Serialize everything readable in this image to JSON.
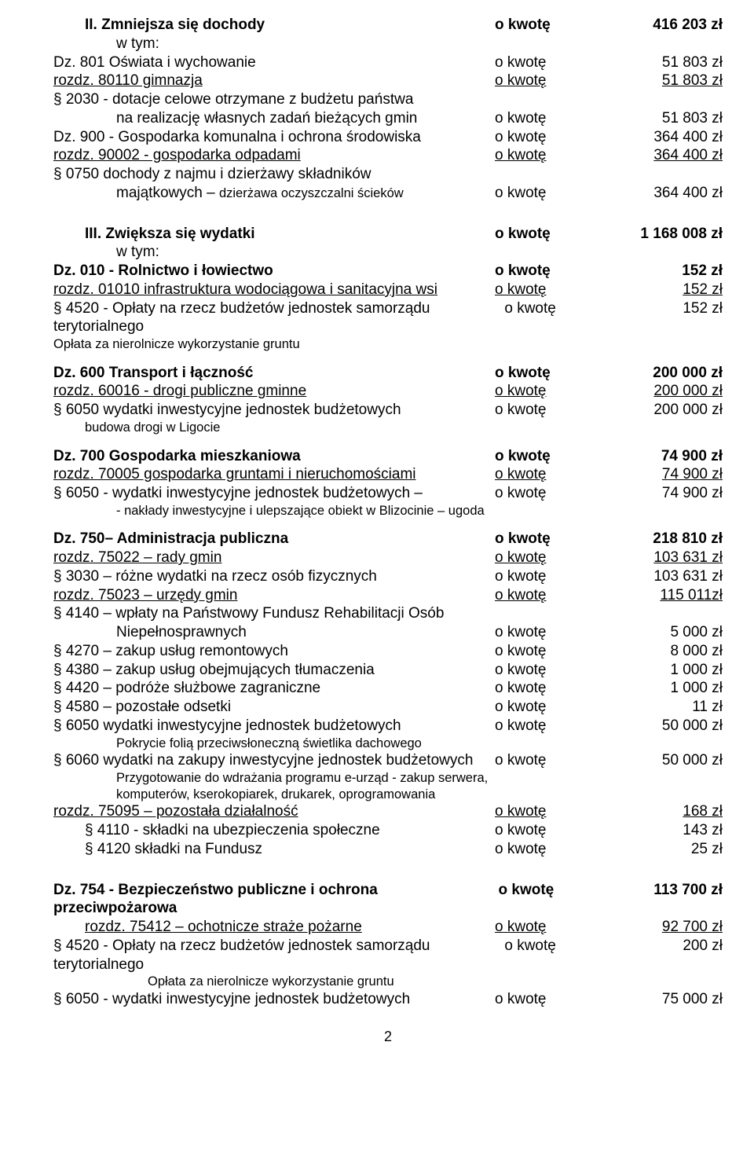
{
  "o_kwote": "o kwotę",
  "sec2": {
    "title": "II. Zmniejsza się dochody",
    "amt": "416 203 zł",
    "wtym": "w tym:",
    "l1": {
      "d": "Dz. 801 Oświata i wychowanie",
      "a": "51 803 zł"
    },
    "l2": {
      "d": "rozdz. 80110 gimnazja",
      "a": "51 803 zł"
    },
    "l3": {
      "d": "§ 2030 - dotacje celowe otrzymane z budżetu państwa"
    },
    "l4": {
      "d": "na realizację własnych zadań bieżących gmin",
      "a": "51 803 zł"
    },
    "l5": {
      "d": "Dz. 900 - Gospodarka komunalna i ochrona środowiska",
      "a": "364 400 zł"
    },
    "l6": {
      "d": "rozdz. 90002 - gospodarka odpadami",
      "a": "364 400 zł"
    },
    "l7": {
      "d": "§ 0750 dochody z najmu i dzierżawy składników"
    },
    "l8": {
      "d1": "majątkowych – ",
      "d2": "dzierżawa oczyszczalni ścieków",
      "a": "364 400 zł"
    }
  },
  "sec3": {
    "title": "III. Zwiększa się wydatki",
    "amt": "1 168 008 zł",
    "wtym": "w tym:",
    "g010": {
      "l1": {
        "d": "Dz. 010 - Rolnictwo i łowiectwo",
        "a": "152 zł"
      },
      "l2": {
        "d": "rozdz. 01010  infrastruktura wodociągowa i sanitacyjna wsi",
        "a": "152 zł"
      },
      "l3": {
        "d": "§ 4520 - Opłaty na rzecz budżetów jednostek samorządu terytorialnego",
        "a": "152 zł"
      },
      "l4": "Opłata za nierolnicze wykorzystanie gruntu"
    },
    "g600": {
      "l1": {
        "d": "Dz. 600 Transport i łączność",
        "a": "200 000 zł"
      },
      "l2": {
        "d": " rozdz. 60016 - drogi publiczne gminne",
        "a": "200 000 zł"
      },
      "l3": {
        "d": "§ 6050 wydatki inwestycyjne jednostek budżetowych",
        "a": "200 000 zł"
      },
      "l4": "budowa drogi w Ligocie"
    },
    "g700": {
      "l1": {
        "d": "Dz. 700 Gospodarka mieszkaniowa",
        "a": "74 900 zł"
      },
      "l2": {
        "d": " rozdz. 70005 gospodarka gruntami i nieruchomościami",
        "a": "74 900 zł"
      },
      "l3": {
        "d": "§ 6050 - wydatki inwestycyjne jednostek budżetowych –",
        "a": "74 900 zł"
      },
      "l4": "- nakłady inwestycyjne i ulepszające obiekt w Blizocinie – ugoda"
    },
    "g750": {
      "l1": {
        "d": "Dz. 750– Administracja publiczna",
        "a": "218 810 zł"
      },
      "l2": {
        "d": " rozdz. 75022 – rady gmin",
        "a": "103 631 zł"
      },
      "l3": {
        "d": "§ 3030 – różne wydatki na rzecz osób fizycznych",
        "a": "103 631 zł"
      },
      "l4": {
        "d": " rozdz.  75023 – urzędy gmin",
        "a": "115 011zł"
      },
      "l5": {
        "d": "§ 4140 – wpłaty na Państwowy Fundusz Rehabilitacji  Osób"
      },
      "l6": {
        "d": "Niepełnosprawnych",
        "a": "5 000 zł"
      },
      "l7": {
        "d": "§ 4270 – zakup usług remontowych",
        "a": "8 000 zł"
      },
      "l8": {
        "d": "§ 4380 – zakup usług obejmujących tłumaczenia",
        "a": "1 000 zł"
      },
      "l9": {
        "d": "§ 4420 – podróże służbowe zagraniczne",
        "a": "1 000 zł"
      },
      "l10": {
        "d": "§ 4580 – pozostałe odsetki",
        "a": "11 zł"
      },
      "l11": {
        "d": "§ 6050  wydatki inwestycyjne jednostek budżetowych",
        "a": "50 000 zł"
      },
      "l12": "Pokrycie folią przeciwsłoneczną świetlika dachowego",
      "l13": {
        "d": "§ 6060  wydatki na zakupy inwestycyjne jednostek budżetowych",
        "m": "o  kwotę",
        "a": "50 000 zł"
      },
      "l14": "Przygotowanie do wdrażania programu e-urząd - zakup serwera,",
      "l15": "komputerów, kserokopiarek, drukarek, oprogramowania",
      "l16": {
        "d": " rozdz. 75095 – pozostała działalność",
        "a": "168 zł"
      },
      "l17": {
        "d": "§ 4110 - składki na ubezpieczenia społeczne",
        "a": "143 zł"
      },
      "l18": {
        "d": "§ 4120   składki na Fundusz",
        "a": "25 zł"
      }
    },
    "g754": {
      "l1": {
        "d": "Dz. 754 - Bezpieczeństwo publiczne i ochrona przeciwpożarowa",
        "a": "113 700 zł"
      },
      "l2": {
        "d": "rozdz. 75412 – ochotnicze straże pożarne",
        "a": "92 700 zł"
      },
      "l3": {
        "d": "§ 4520 - Opłaty na rzecz budżetów jednostek samorządu terytorialnego",
        "a": "200 zł"
      },
      "l4": "Opłata za nierolnicze wykorzystanie gruntu",
      "l5": {
        "d": "§ 6050 - wydatki inwestycyjne jednostek budżetowych",
        "a": "75 000 zł"
      }
    }
  },
  "pagenum": "2"
}
